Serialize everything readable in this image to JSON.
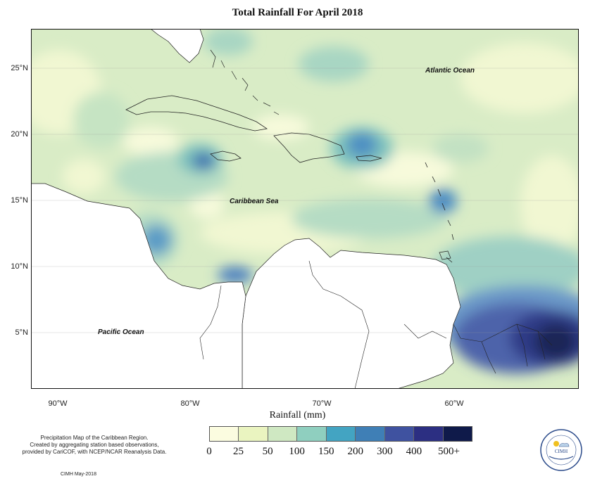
{
  "title": "Total Rainfall For April 2018",
  "axes": {
    "x_ticks": [
      "90°W",
      "80°W",
      "70°W",
      "60°W"
    ],
    "y_ticks": [
      "25°N",
      "20°N",
      "15°N",
      "10°N",
      "5°N"
    ],
    "xlabel": "Rainfall (mm)"
  },
  "labels": {
    "atlantic": "Atlantic Ocean",
    "caribbean": "Caribbean Sea",
    "pacific": "Pacific Ocean"
  },
  "legend": {
    "labels": [
      "0",
      "25",
      "50",
      "100",
      "150",
      "200",
      "300",
      "400",
      "500+"
    ],
    "colors": [
      "#fbfce0",
      "#eaf4c0",
      "#cfe8c2",
      "#8fcfbf",
      "#43a4c2",
      "#3f7fb6",
      "#3f52a0",
      "#2c2f82",
      "#0f1a4a"
    ]
  },
  "credits": {
    "line1": "Precipitation Map of the Caribbean Region.",
    "line2": "Created by aggregating station based observations,",
    "line3": "provided by CariCOF, with NCEP/NCAR Reanalysis Data.",
    "date": "CIMH May-2018"
  },
  "logo": {
    "text": "CIMH"
  }
}
